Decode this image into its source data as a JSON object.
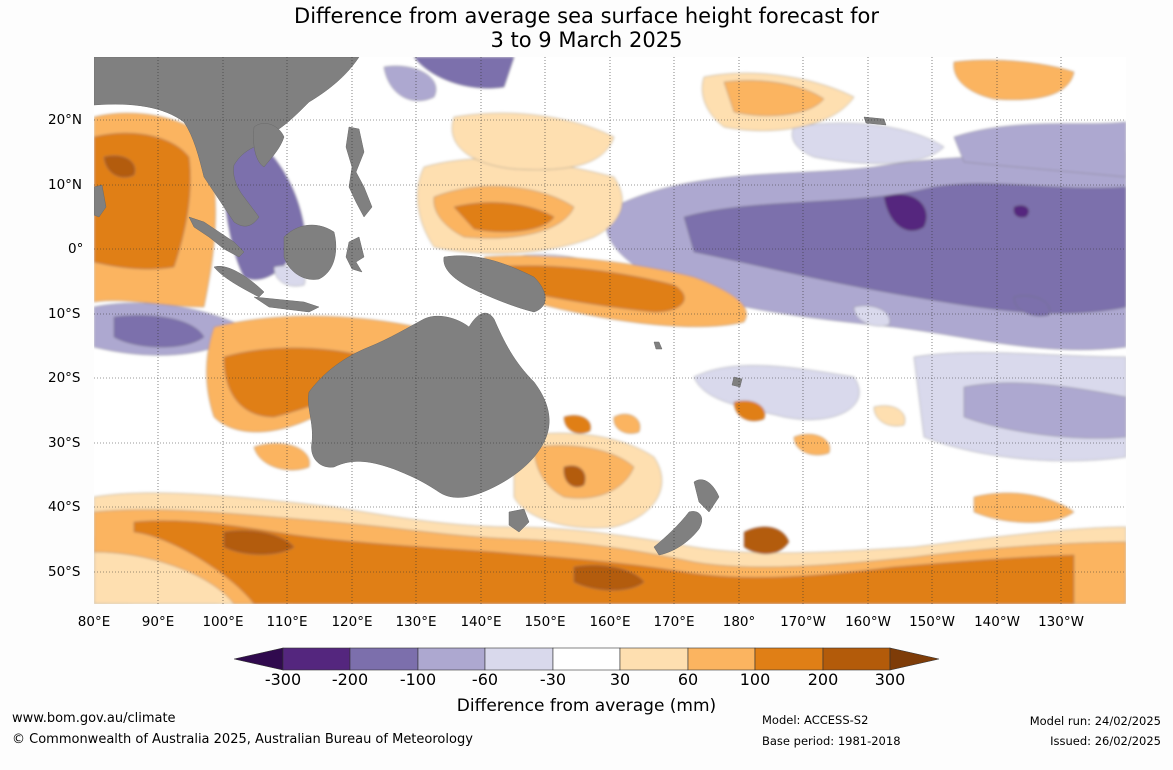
{
  "title": {
    "line1": "Difference from average sea surface height forecast for",
    "line2": "3 to 9 March 2025"
  },
  "map": {
    "lat_labels": [
      "20°N",
      "10°N",
      "0°",
      "10°S",
      "20°S",
      "30°S",
      "40°S",
      "50°S"
    ],
    "lon_labels": [
      "80°E",
      "90°E",
      "100°E",
      "110°E",
      "120°E",
      "130°E",
      "140°E",
      "150°E",
      "160°E",
      "170°E",
      "180°",
      "170°W",
      "160°W",
      "150°W",
      "140°W",
      "130°W"
    ],
    "land_color": "#808080",
    "grid_style": "dotted"
  },
  "colorbar": {
    "ticks": [
      "-300",
      "-200",
      "-100",
      "-60",
      "-30",
      "30",
      "60",
      "100",
      "200",
      "300"
    ],
    "colors": [
      "#300a4e",
      "#54267e",
      "#7c6fac",
      "#ada8d0",
      "#d9d9ec",
      "#ffffff",
      "#fedfb0",
      "#fbb460",
      "#e07f16",
      "#b35b0a",
      "#7e3c08"
    ],
    "label": "Difference from average (mm)"
  },
  "footer": {
    "website": "www.bom.gov.au/climate",
    "copyright": "© Commonwealth of Australia 2025, Australian Bureau of Meteorology",
    "model": "Model: ACCESS-S2",
    "base_period": "Base period: 1981-2018",
    "model_run": "Model run: 24/02/2025",
    "issued": "Issued: 26/02/2025"
  }
}
